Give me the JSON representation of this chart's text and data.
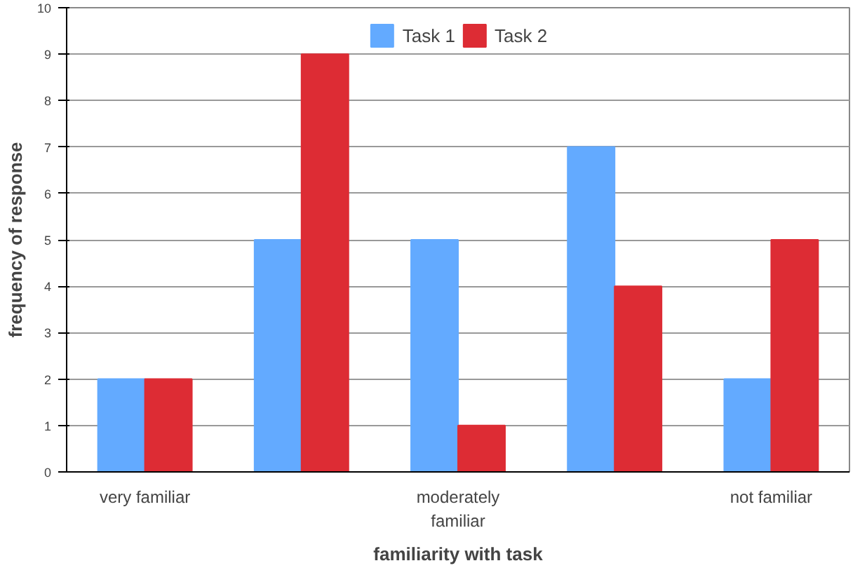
{
  "chart_data": {
    "type": "bar",
    "xlabel": "familiarity with task",
    "ylabel": "frequency of response",
    "categories": [
      "very familiar",
      null,
      "moderately familiar",
      null,
      "not familiar"
    ],
    "series": [
      {
        "name": "Task 1",
        "color": "#63aaff",
        "values": [
          2,
          5,
          5,
          7,
          2
        ]
      },
      {
        "name": "Task 2",
        "color": "#dd2c34",
        "values": [
          2,
          9,
          1,
          4,
          5
        ]
      }
    ],
    "ylim": [
      0,
      10
    ],
    "yticks": [
      0,
      1,
      2,
      3,
      4,
      5,
      6,
      7,
      8,
      9,
      10
    ],
    "grid": "y",
    "legend": "top"
  }
}
